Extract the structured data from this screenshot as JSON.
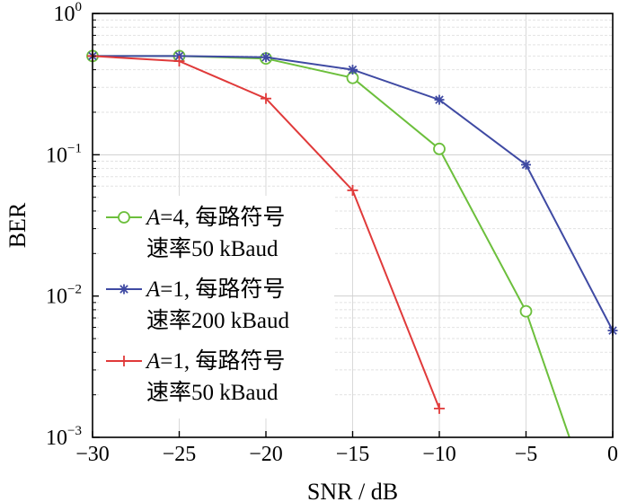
{
  "chart_data": {
    "type": "line",
    "xlabel": "SNR / dB",
    "ylabel": "BER",
    "xlim": [
      -30,
      0
    ],
    "ylim": [
      0.001,
      1
    ],
    "yscale": "log",
    "x_ticks": [
      -30,
      -25,
      -20,
      -15,
      -10,
      -5,
      0
    ],
    "x_tick_labels": [
      "−30",
      "−25",
      "−20",
      "−15",
      "−10",
      "−5",
      "0"
    ],
    "y_ticks": [
      {
        "value": 1,
        "base": "10",
        "exp": "0"
      },
      {
        "value": 0.1,
        "base": "10",
        "exp": "−1"
      },
      {
        "value": 0.01,
        "base": "10",
        "exp": "−2"
      },
      {
        "value": 0.001,
        "base": "10",
        "exp": "−3"
      }
    ],
    "grid": true,
    "legend_position": "bottom-left",
    "series": [
      {
        "name_var": "A",
        "name_rest": "=4, 每路符号",
        "name_line2": "速率50 kBaud",
        "color": "#6cbf3c",
        "marker": "circle",
        "x": [
          -30,
          -25,
          -20,
          -15,
          -10,
          -5,
          -2.5
        ],
        "y": [
          0.5,
          0.5,
          0.48,
          0.35,
          0.11,
          0.0078,
          0.001
        ]
      },
      {
        "name_var": "A",
        "name_rest": "=1, 每路符号",
        "name_line2": "速率200 kBaud",
        "color": "#3f4aa3",
        "marker": "star",
        "x": [
          -30,
          -25,
          -20,
          -15,
          -10,
          -5,
          0
        ],
        "y": [
          0.5,
          0.5,
          0.49,
          0.4,
          0.245,
          0.085,
          0.0057
        ]
      },
      {
        "name_var": "A",
        "name_rest": "=1, 每路符号",
        "name_line2": "速率50 kBaud",
        "color": "#e03a3a",
        "marker": "plus",
        "x": [
          -30,
          -25,
          -20,
          -15,
          -10
        ],
        "y": [
          0.5,
          0.46,
          0.25,
          0.056,
          0.0016
        ]
      }
    ]
  }
}
